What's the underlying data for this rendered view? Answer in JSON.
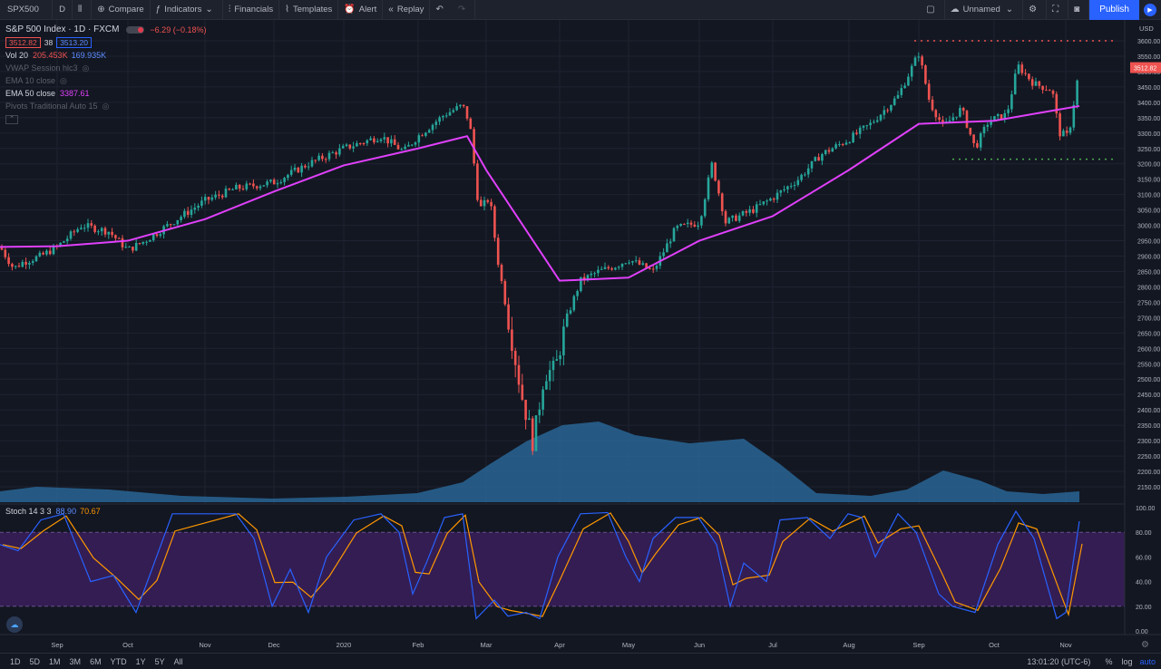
{
  "toolbar": {
    "symbol": "SPX500",
    "resolution": "D",
    "compare": "Compare",
    "indicators": "Indicators",
    "financials": "Financials",
    "templates": "Templates",
    "alert": "Alert",
    "replay": "Replay",
    "layout_name": "Unnamed",
    "publish": "Publish"
  },
  "legend": {
    "title": "S&P 500 Index · 1D · FXCM",
    "bid": "3512.82",
    "spread": "38",
    "ask": "3513.20",
    "change": "−6.29 (−0.18%)",
    "indicators": [
      {
        "name": "Vol 20",
        "v1": "205.453K",
        "v2": "169.935K",
        "visible": true
      },
      {
        "name": "VWAP Session hlc3",
        "visible": false
      },
      {
        "name": "EMA 10 close",
        "visible": false
      },
      {
        "name": "EMA 50 close",
        "value": "3387.61",
        "visible": true
      },
      {
        "name": "Pivots Traditional Auto 15",
        "visible": false
      }
    ]
  },
  "stoch": {
    "name": "Stoch 14 3 3",
    "k": "88.90",
    "d": "70.67"
  },
  "price_axis": {
    "currency": "USD",
    "last_price_label": "3512.82",
    "ticks": [
      "3600.00",
      "3550.00",
      "3500.00",
      "3450.00",
      "3400.00",
      "3350.00",
      "3300.00",
      "3250.00",
      "3200.00",
      "3150.00",
      "3100.00",
      "3050.00",
      "3000.00",
      "2950.00",
      "2900.00",
      "2850.00",
      "2800.00",
      "2750.00",
      "2700.00",
      "2650.00",
      "2600.00",
      "2550.00",
      "2500.00",
      "2450.00",
      "2400.00",
      "2350.00",
      "2300.00",
      "2250.00",
      "2200.00",
      "2150.00"
    ]
  },
  "stoch_axis": {
    "ticks": [
      "100.00",
      "80.00",
      "60.00",
      "40.00",
      "20.00",
      "0.00"
    ]
  },
  "time_axis": {
    "labels": [
      "Sep",
      "Oct",
      "Nov",
      "Dec",
      "2020",
      "Feb",
      "Mar",
      "Apr",
      "May",
      "Jun",
      "Jul",
      "Aug",
      "Sep",
      "Oct",
      "Nov"
    ]
  },
  "bottom": {
    "ranges": [
      "1D",
      "5D",
      "1M",
      "3M",
      "6M",
      "YTD",
      "1Y",
      "5Y",
      "All"
    ],
    "clock": "13:01:20 (UTC-6)",
    "percent": "%",
    "log": "log",
    "auto": "auto"
  },
  "colors": {
    "up": "#26a69a",
    "down": "#ef5350",
    "ema": "#e040fb",
    "volume": "#2b6a9c",
    "stoch_k": "#2962ff",
    "stoch_d": "#ff9800",
    "band": "#3a1f5c"
  },
  "chart_data": {
    "type": "candlestick",
    "price_range": [
      2150,
      3600
    ],
    "ema50": {
      "name": "EMA 50 close",
      "x": [
        "Sep",
        "Oct",
        "Nov",
        "Dec",
        "2020",
        "Feb",
        "Feb-late",
        "Mar",
        "Apr",
        "May",
        "Jun",
        "Jul",
        "Aug",
        "Sep",
        "Oct",
        "Nov"
      ],
      "y": [
        2932,
        2950,
        3020,
        3110,
        3195,
        3250,
        3290,
        3050,
        2820,
        2830,
        2950,
        3030,
        3180,
        3330,
        3340,
        3388
      ]
    },
    "resistance_level": 3600,
    "support_level": 3215,
    "stochastic": {
      "upper": 80,
      "lower": 20,
      "k_last": 88.9,
      "d_last": 70.67
    }
  }
}
